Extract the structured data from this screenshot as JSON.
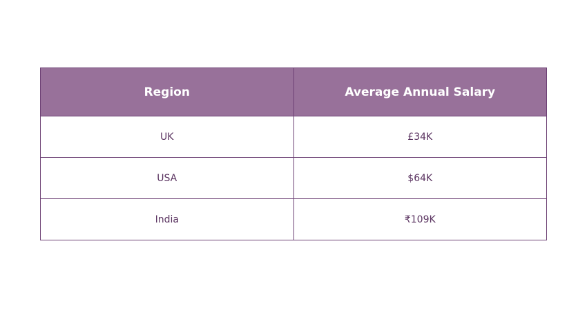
{
  "table": {
    "header": [
      "Region",
      "Average Annual Salary"
    ],
    "rows": [
      [
        "UK",
        "£34K"
      ],
      [
        "USA",
        "$64K"
      ],
      [
        "India",
        "₹109K"
      ]
    ]
  }
}
